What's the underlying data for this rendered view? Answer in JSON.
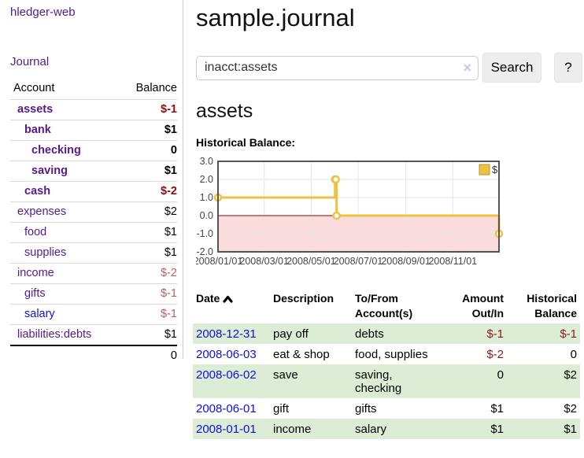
{
  "app": {
    "brand": "hledger-web"
  },
  "sidebar": {
    "nav": {
      "journal": "Journal"
    },
    "accounts": {
      "header_account": "Account",
      "header_balance": "Balance",
      "rows": [
        {
          "name": "assets",
          "balance": "$-1",
          "depth": 1,
          "bold": true
        },
        {
          "name": "bank",
          "balance": "$1",
          "depth": 2,
          "bold": true
        },
        {
          "name": "checking",
          "balance": "0",
          "depth": 3,
          "bold": true
        },
        {
          "name": "saving",
          "balance": "$1",
          "depth": 3,
          "bold": true
        },
        {
          "name": "cash",
          "balance": "$-2",
          "depth": 2,
          "bold": true
        },
        {
          "name": "expenses",
          "balance": "$2",
          "depth": 1,
          "bold": false
        },
        {
          "name": "food",
          "balance": "$1",
          "depth": 2,
          "bold": false
        },
        {
          "name": "supplies",
          "balance": "$1",
          "depth": 2,
          "bold": false
        },
        {
          "name": "income",
          "balance": "$-2",
          "depth": 1,
          "bold": false
        },
        {
          "name": "gifts",
          "balance": "$-1",
          "depth": 2,
          "bold": false
        },
        {
          "name": "salary",
          "balance": "$-1",
          "depth": 2,
          "bold": false,
          "visited": false
        },
        {
          "name": "liabilities:debts",
          "balance": "$1",
          "depth": 1,
          "bold": false
        }
      ],
      "total": "0"
    }
  },
  "main": {
    "title": "sample.journal",
    "search": {
      "value": "inacct:assets",
      "clear_icon": "×",
      "button_label": "Search",
      "help_label": "?"
    },
    "account_heading": "assets",
    "section_label": "Historical Balance:"
  },
  "chart_data": {
    "type": "line",
    "title": "Historical Balance",
    "step": true,
    "legend_label": "$",
    "legend_position": "top-right",
    "series": [
      {
        "name": "$",
        "color": "#edc240",
        "points": [
          [
            "2008-01-01",
            1
          ],
          [
            "2008-06-01",
            2
          ],
          [
            "2008-06-02",
            2
          ],
          [
            "2008-06-03",
            0
          ],
          [
            "2008-12-31",
            -1
          ]
        ]
      }
    ],
    "x_domain": [
      "2008-01-01",
      "2008-12-31"
    ],
    "x_ticks": [
      "2008/01/01",
      "2008/03/01",
      "2008/05/01",
      "2008/07/01",
      "2008/09/01",
      "2008/11/01"
    ],
    "y_ticks": [
      3.0,
      2.0,
      1.0,
      0.0,
      -1.0,
      -2.0
    ],
    "ylim": [
      -2,
      3
    ],
    "grid": true,
    "zero_line_color": "#8b0000",
    "negative_region_fill": "#fbdcdc",
    "plot_border_color": "#545454"
  },
  "register": {
    "headers": {
      "date": "Date",
      "description": "Description",
      "accounts": "To/From Account(s)",
      "amount": "Amount Out/In",
      "balance": "Historical Balance"
    },
    "rows": [
      {
        "date": "2008-12-31",
        "description": "pay off",
        "accounts": "debts",
        "amount": "$-1",
        "balance": "$-1"
      },
      {
        "date": "2008-06-03",
        "description": "eat & shop",
        "accounts": "food, supplies",
        "amount": "$-2",
        "balance": "0"
      },
      {
        "date": "2008-06-02",
        "description": "save",
        "accounts": "saving, checking",
        "amount": "0",
        "balance": "$2"
      },
      {
        "date": "2008-06-01",
        "description": "gift",
        "accounts": "gifts",
        "amount": "$1",
        "balance": "$2"
      },
      {
        "date": "2008-01-01",
        "description": "income",
        "accounts": "salary",
        "amount": "$1",
        "balance": "$1"
      }
    ]
  },
  "colors": {
    "link_visited": "#551a8b",
    "link_unvisited": "#0f0fd9",
    "negative_strong": "#8b0d0d",
    "negative_soft": "#b26262",
    "negative_table": "#8b1a1a",
    "row_stripe_green": "#ddedd5",
    "series_gold": "#edc240"
  }
}
